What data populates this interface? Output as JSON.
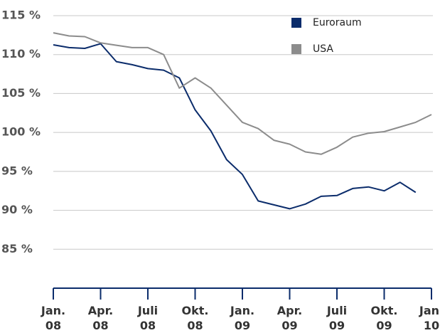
{
  "chart_data": {
    "type": "line",
    "categories": [
      [
        "Jan.",
        "08"
      ],
      null,
      null,
      [
        "Apr.",
        "08"
      ],
      null,
      null,
      [
        "Juli",
        "08"
      ],
      null,
      null,
      [
        "Okt.",
        "08"
      ],
      null,
      null,
      [
        "Jan.",
        "09"
      ],
      null,
      null,
      [
        "Apr.",
        "09"
      ],
      null,
      null,
      [
        "Juli",
        "09"
      ],
      null,
      null,
      [
        "Okt.",
        "09"
      ],
      null,
      null,
      [
        "Jan.",
        "10"
      ]
    ],
    "series": [
      {
        "name": "Euroraum",
        "color": "#0b2c6b",
        "values": [
          111.25,
          110.9,
          110.8,
          111.4,
          109.1,
          108.7,
          108.2,
          108.0,
          107.0,
          102.9,
          100.2,
          96.5,
          94.6,
          91.2,
          90.7,
          90.2,
          90.8,
          91.8,
          91.9,
          92.8,
          93.0,
          92.5,
          93.6,
          92.3,
          null
        ]
      },
      {
        "name": "USA",
        "color": "#8c8c8c",
        "values": [
          112.8,
          112.4,
          112.3,
          111.5,
          111.2,
          110.9,
          110.9,
          110.0,
          105.7,
          107.0,
          105.7,
          103.5,
          101.3,
          100.5,
          99.0,
          98.5,
          97.5,
          97.2,
          98.1,
          99.4,
          99.9,
          100.1,
          100.7,
          101.3,
          102.3
        ]
      }
    ],
    "ylim": [
      80,
      115
    ],
    "yticks": [
      {
        "value": 85,
        "label": "85 %"
      },
      {
        "value": 90,
        "label": "90 %"
      },
      {
        "value": 95,
        "label": "95 %"
      },
      {
        "value": 100,
        "label": "100 %"
      },
      {
        "value": 105,
        "label": "105 %"
      },
      {
        "value": 110,
        "label": "110 %"
      },
      {
        "value": 115,
        "label": "115 %"
      }
    ],
    "grid": true,
    "legend": "upper right"
  }
}
